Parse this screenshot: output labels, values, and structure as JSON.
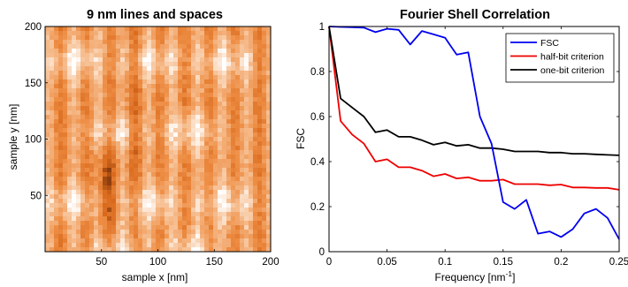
{
  "chart_data": [
    {
      "type": "heatmap",
      "title": "9 nm lines and spaces",
      "xlabel": "sample x [nm]",
      "ylabel": "sample y [nm]",
      "xlim": [
        0,
        200
      ],
      "ylim": [
        0,
        200
      ],
      "xticks": [
        "50",
        "100",
        "150",
        "200"
      ],
      "yticks": [
        "50",
        "100",
        "150",
        "200"
      ],
      "colormap": [
        "#ffffff",
        "#f7c49a",
        "#ee8e45",
        "#d8691c",
        "#6a2a08"
      ]
    },
    {
      "type": "line",
      "title": "Fourier Shell Correlation",
      "xlabel": "Frequency [nm",
      "xlabel_sup": "-1",
      "xlabel_end": "]",
      "ylabel": "FSC",
      "xlim": [
        0,
        0.25
      ],
      "ylim": [
        0,
        1
      ],
      "xticks": [
        "0",
        "0.05",
        "0.1",
        "0.15",
        "0.2",
        "0.25"
      ],
      "yticks": [
        "0",
        "0.2",
        "0.4",
        "0.6",
        "0.8",
        "1"
      ],
      "legend_position": "top-right",
      "series": [
        {
          "name": "FSC",
          "color": "#0000ee",
          "x": [
            0,
            0.01,
            0.02,
            0.03,
            0.04,
            0.05,
            0.06,
            0.07,
            0.08,
            0.09,
            0.1,
            0.11,
            0.12,
            0.13,
            0.14,
            0.15,
            0.16,
            0.17,
            0.18,
            0.19,
            0.2,
            0.21,
            0.22,
            0.23,
            0.24,
            0.25
          ],
          "y": [
            1.0,
            0.998,
            0.997,
            0.995,
            0.975,
            0.99,
            0.985,
            0.92,
            0.98,
            0.965,
            0.95,
            0.875,
            0.885,
            0.6,
            0.48,
            0.22,
            0.19,
            0.23,
            0.08,
            0.09,
            0.065,
            0.1,
            0.17,
            0.19,
            0.15,
            0.055
          ]
        },
        {
          "name": "half-bit criterion",
          "color": "#ee0000",
          "x": [
            0,
            0.01,
            0.02,
            0.03,
            0.04,
            0.05,
            0.06,
            0.07,
            0.08,
            0.09,
            0.1,
            0.11,
            0.12,
            0.13,
            0.14,
            0.15,
            0.16,
            0.17,
            0.18,
            0.19,
            0.2,
            0.21,
            0.22,
            0.23,
            0.24,
            0.25
          ],
          "y": [
            1.0,
            0.58,
            0.52,
            0.48,
            0.4,
            0.41,
            0.375,
            0.375,
            0.36,
            0.335,
            0.345,
            0.325,
            0.33,
            0.315,
            0.315,
            0.32,
            0.3,
            0.3,
            0.3,
            0.295,
            0.298,
            0.285,
            0.285,
            0.283,
            0.283,
            0.275
          ]
        },
        {
          "name": "one-bit criterion",
          "color": "#000000",
          "x": [
            0,
            0.01,
            0.02,
            0.03,
            0.04,
            0.05,
            0.06,
            0.07,
            0.08,
            0.09,
            0.1,
            0.11,
            0.12,
            0.13,
            0.14,
            0.15,
            0.16,
            0.17,
            0.18,
            0.19,
            0.2,
            0.21,
            0.22,
            0.23,
            0.24,
            0.25
          ],
          "y": [
            1.0,
            0.68,
            0.64,
            0.6,
            0.53,
            0.54,
            0.51,
            0.51,
            0.495,
            0.475,
            0.485,
            0.47,
            0.475,
            0.46,
            0.46,
            0.455,
            0.445,
            0.445,
            0.445,
            0.44,
            0.44,
            0.435,
            0.435,
            0.432,
            0.43,
            0.428
          ]
        }
      ]
    }
  ]
}
